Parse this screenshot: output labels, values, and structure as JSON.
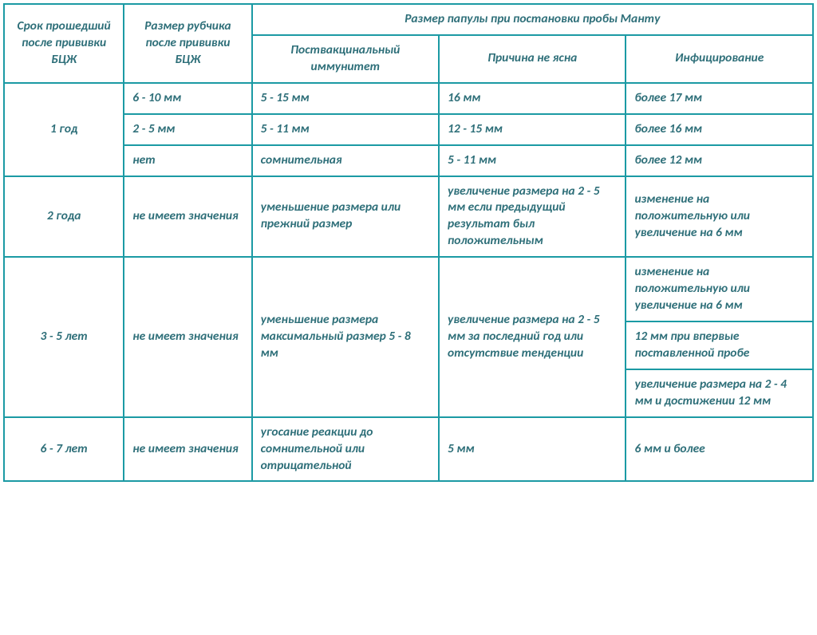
{
  "meta": {
    "type": "table",
    "border_color": "#1b9aa4",
    "text_color": "#2e6f79",
    "header_bg": "#ffffff"
  },
  "header": {
    "col1": "Срок прошедший после прививки БЦЖ",
    "col2": "Размер рубчика после прививки БЦЖ",
    "group": "Размер папулы при постановки пробы Манту",
    "col3": "Поствакцинальный иммунитет",
    "col4": "Причина не ясна",
    "col5": "Инфицирование"
  },
  "rows": {
    "r1": {
      "period": "1 год",
      "a_scar": "6 - 10 мм",
      "a_imm": "5 - 15 мм",
      "a_uncertain": "16 мм",
      "a_inf": "более 17 мм",
      "b_scar": "2 - 5 мм",
      "b_imm": "5 - 11 мм",
      "b_uncertain": "12 - 15 мм",
      "b_inf": "более 16 мм",
      "c_scar": "нет",
      "c_imm": "сомнительная",
      "c_uncertain": "5 - 11 мм",
      "c_inf": "более 12 мм"
    },
    "r2": {
      "period": "2 года",
      "scar": "не имеет значения",
      "imm": "уменьшение размера или прежний размер",
      "uncertain": "увеличение размера на 2 - 5 мм если предыдущий результат был положительным",
      "inf": "изменение на положительную или увеличение на 6 мм"
    },
    "r3": {
      "period": "3 - 5 лет",
      "scar": "не имеет значения",
      "imm": "уменьшение размера максимальный размер 5 - 8 мм",
      "uncertain": "увеличение размера на 2 - 5 мм за последний год или отсутствие тенденции",
      "inf_a": "изменение на положительную или увеличение на 6 мм",
      "inf_b": "12 мм при впервые поставленной пробе",
      "inf_c": "увеличение размера на 2 - 4 мм и достижении 12 мм"
    },
    "r4": {
      "period": "6 - 7 лет",
      "scar": "не имеет значения",
      "imm": "угосание реакции до сомнительной или отрицательной",
      "uncertain": "5 мм",
      "inf": "6 мм и более"
    }
  }
}
